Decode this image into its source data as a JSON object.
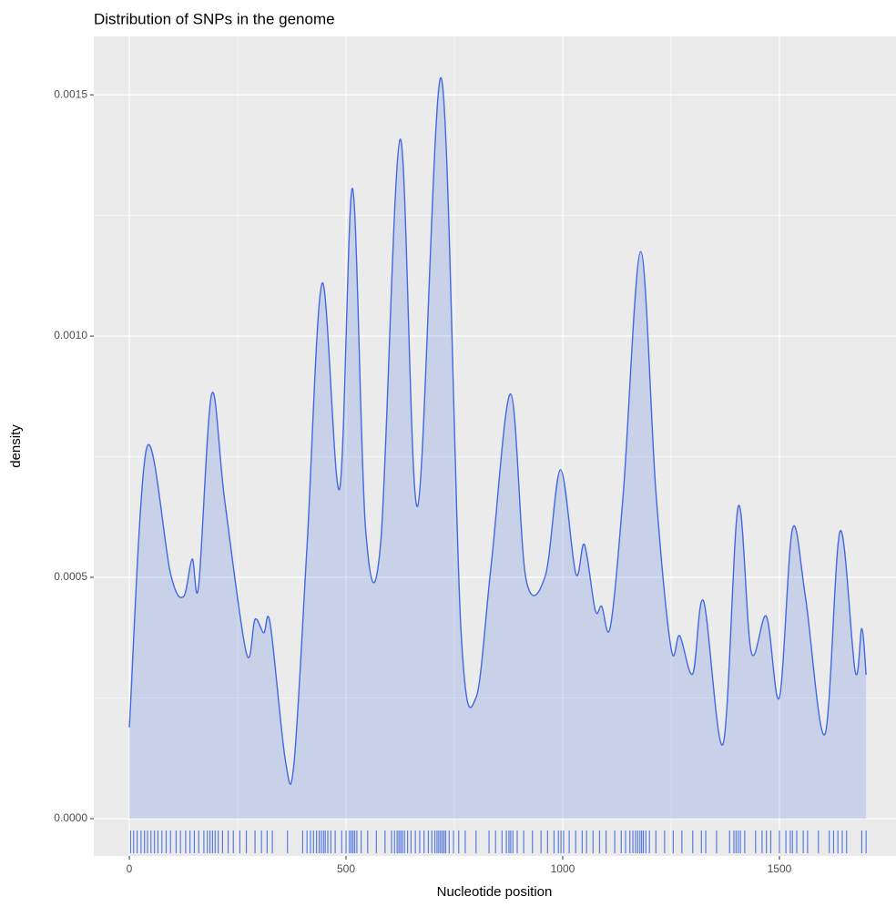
{
  "chart_data": {
    "type": "density",
    "title": "Distribution of SNPs in the genome",
    "x_label": "Nucleotide position",
    "y_label": "density",
    "color": "#4169e1",
    "fill": "#4169e1",
    "fill_opacity": 0.2,
    "x": [
      0,
      40,
      95,
      125,
      145,
      160,
      190,
      220,
      270,
      290,
      310,
      325,
      360,
      380,
      410,
      445,
      485,
      515,
      545,
      580,
      625,
      665,
      720,
      765,
      800,
      835,
      880,
      915,
      960,
      995,
      1030,
      1050,
      1075,
      1090,
      1110,
      1140,
      1180,
      1215,
      1250,
      1270,
      1300,
      1325,
      1370,
      1405,
      1435,
      1470,
      1500,
      1530,
      1560,
      1605,
      1640,
      1675,
      1690,
      1700
    ],
    "values": [
      0.000189,
      0.000768,
      0.000508,
      0.00046,
      0.000538,
      0.000483,
      0.00088,
      0.00066,
      0.000343,
      0.000413,
      0.000385,
      0.000404,
      0.000121,
      0.000115,
      0.000564,
      0.00111,
      0.000683,
      0.001306,
      0.000602,
      0.000572,
      0.001408,
      0.000647,
      0.001534,
      0.000394,
      0.000251,
      0.000526,
      0.00088,
      0.000498,
      0.000504,
      0.000723,
      0.000508,
      0.000568,
      0.000432,
      0.00044,
      0.000398,
      0.000677,
      0.001175,
      0.000677,
      0.000353,
      0.000379,
      0.0003,
      0.000451,
      0.000155,
      0.000647,
      0.000345,
      0.000419,
      0.000251,
      0.0006,
      0.00046,
      0.000175,
      0.000596,
      0.000304,
      0.000394,
      0.000298
    ],
    "rug": [
      3,
      10,
      18,
      27,
      35,
      42,
      50,
      58,
      66,
      75,
      85,
      95,
      108,
      118,
      130,
      140,
      150,
      160,
      172,
      180,
      186,
      192,
      198,
      205,
      215,
      228,
      240,
      255,
      270,
      290,
      305,
      318,
      330,
      365,
      400,
      410,
      418,
      425,
      432,
      438,
      443,
      448,
      452,
      458,
      465,
      475,
      490,
      500,
      508,
      512,
      516,
      520,
      525,
      535,
      550,
      570,
      590,
      605,
      612,
      618,
      622,
      626,
      630,
      635,
      642,
      650,
      660,
      670,
      680,
      690,
      698,
      705,
      710,
      714,
      718,
      722,
      726,
      730,
      738,
      748,
      760,
      775,
      800,
      830,
      845,
      860,
      870,
      876,
      880,
      885,
      895,
      910,
      930,
      950,
      965,
      980,
      990,
      996,
      1002,
      1015,
      1030,
      1045,
      1055,
      1070,
      1085,
      1100,
      1120,
      1135,
      1145,
      1155,
      1162,
      1168,
      1173,
      1178,
      1182,
      1186,
      1192,
      1200,
      1215,
      1235,
      1255,
      1275,
      1300,
      1320,
      1330,
      1355,
      1385,
      1395,
      1400,
      1405,
      1410,
      1420,
      1445,
      1460,
      1470,
      1480,
      1500,
      1515,
      1525,
      1530,
      1540,
      1555,
      1565,
      1590,
      1615,
      1625,
      1635,
      1645,
      1655,
      1690,
      1700
    ],
    "xlim": [
      -82,
      1769
    ],
    "ylim": [
      -7.74e-05,
      0.001621
    ],
    "xticks": [
      0,
      500,
      1000,
      1500
    ],
    "yticks": [
      {
        "value": 0,
        "label": "0.0000"
      },
      {
        "value": 0.0005,
        "label": "0.0005"
      },
      {
        "value": 0.001,
        "label": "0.0010"
      },
      {
        "value": 0.0015,
        "label": "0.0015"
      }
    ],
    "x_minor_grid": [
      250,
      750,
      1250
    ],
    "y_minor_grid": [
      0.00025,
      0.00075,
      0.00125
    ],
    "grid": true
  }
}
